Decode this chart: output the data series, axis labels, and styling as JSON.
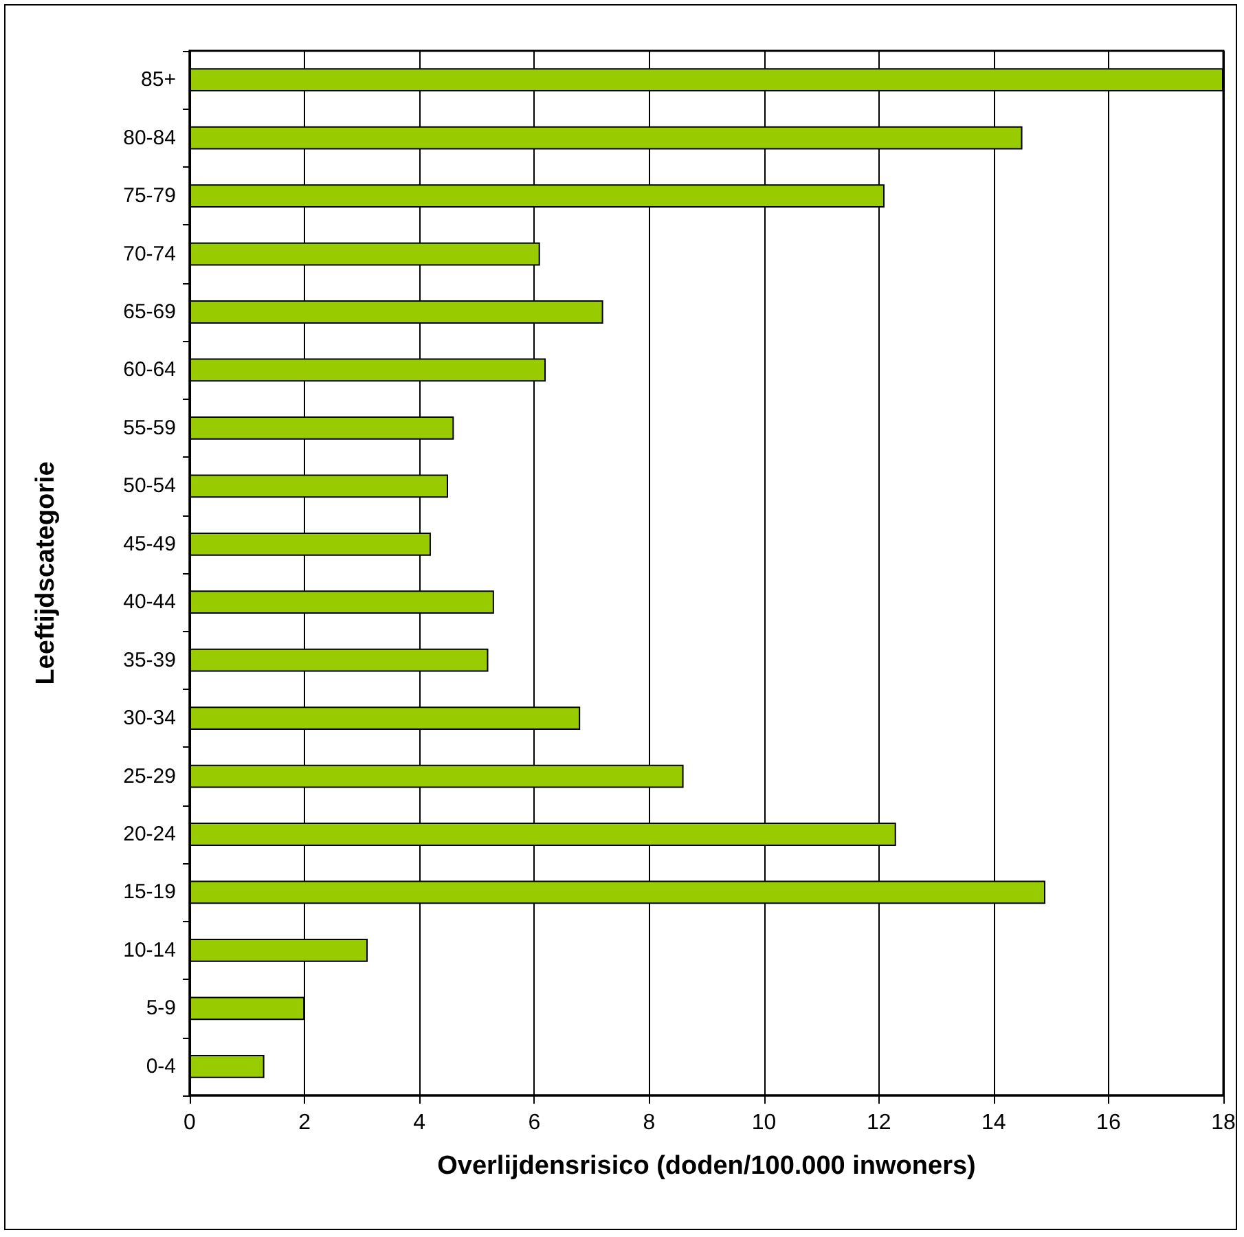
{
  "chart_data": {
    "type": "bar",
    "orientation": "horizontal",
    "xlabel": "Overlijdensrisico (doden/100.000 inwoners)",
    "ylabel": "Leeftijdscategorie",
    "categories": [
      "85+",
      "80-84",
      "75-79",
      "70-74",
      "65-69",
      "60-64",
      "55-59",
      "50-54",
      "45-49",
      "40-44",
      "35-39",
      "30-34",
      "25-29",
      "20-24",
      "15-19",
      "10-14",
      "5-9",
      "0-4"
    ],
    "values": [
      18,
      14.5,
      12.1,
      6.1,
      7.2,
      6.2,
      4.6,
      4.5,
      4.2,
      5.3,
      5.2,
      6.8,
      8.6,
      12.3,
      14.9,
      3.1,
      2.0,
      1.3
    ],
    "color": "#99cc00",
    "xlim": [
      0,
      18
    ],
    "xticks": [
      0,
      2,
      4,
      6,
      8,
      10,
      12,
      14,
      16,
      18
    ],
    "grid": "x"
  }
}
